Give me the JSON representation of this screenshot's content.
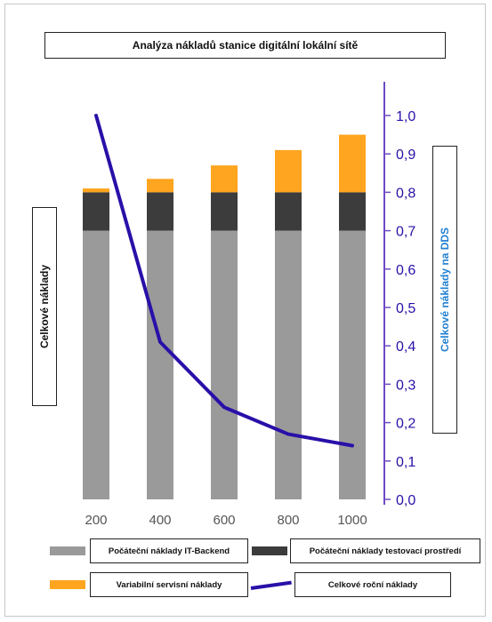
{
  "chart_data": {
    "type": "bar",
    "title": "Analýza nákladů stanice digitální lokální sítě",
    "ylabel": "Celkové náklady",
    "y2label": "Celkové náklady na DDS",
    "categories": [
      "200",
      "400",
      "600",
      "800",
      "1000"
    ],
    "series": [
      {
        "name": "Počáteční náklady IT-Backend",
        "type": "stacked-bar",
        "axis": "left",
        "values": [
          0.7,
          0.7,
          0.7,
          0.7,
          0.7
        ]
      },
      {
        "name": "Počáteční náklady testovací prostředí",
        "type": "stacked-bar",
        "axis": "left",
        "values": [
          0.1,
          0.1,
          0.1,
          0.1,
          0.1
        ]
      },
      {
        "name": "Variabilní servisní náklady",
        "type": "stacked-bar",
        "axis": "left",
        "values": [
          0.01,
          0.035,
          0.07,
          0.11,
          0.15
        ]
      },
      {
        "name": "Celkové roční náklady",
        "type": "line",
        "axis": "right",
        "values": [
          1.0,
          0.41,
          0.24,
          0.17,
          0.14
        ]
      }
    ],
    "y2ticks": [
      "0,0",
      "0,1",
      "0,2",
      "0,3",
      "0,4",
      "0,5",
      "0,6",
      "0,7",
      "0,8",
      "0,9",
      "1,0"
    ],
    "y2lim": [
      0,
      1
    ],
    "grid": false,
    "legend_position": "bottom"
  },
  "colors": {
    "backend": "#9a9a9a",
    "test_env": "#3c3c3c",
    "service": "#ffa51f",
    "annual_line": "#2a0fa8",
    "axis": "#6f4bc4",
    "tick_text": "#2a0fa8",
    "category_text": "#555555"
  }
}
